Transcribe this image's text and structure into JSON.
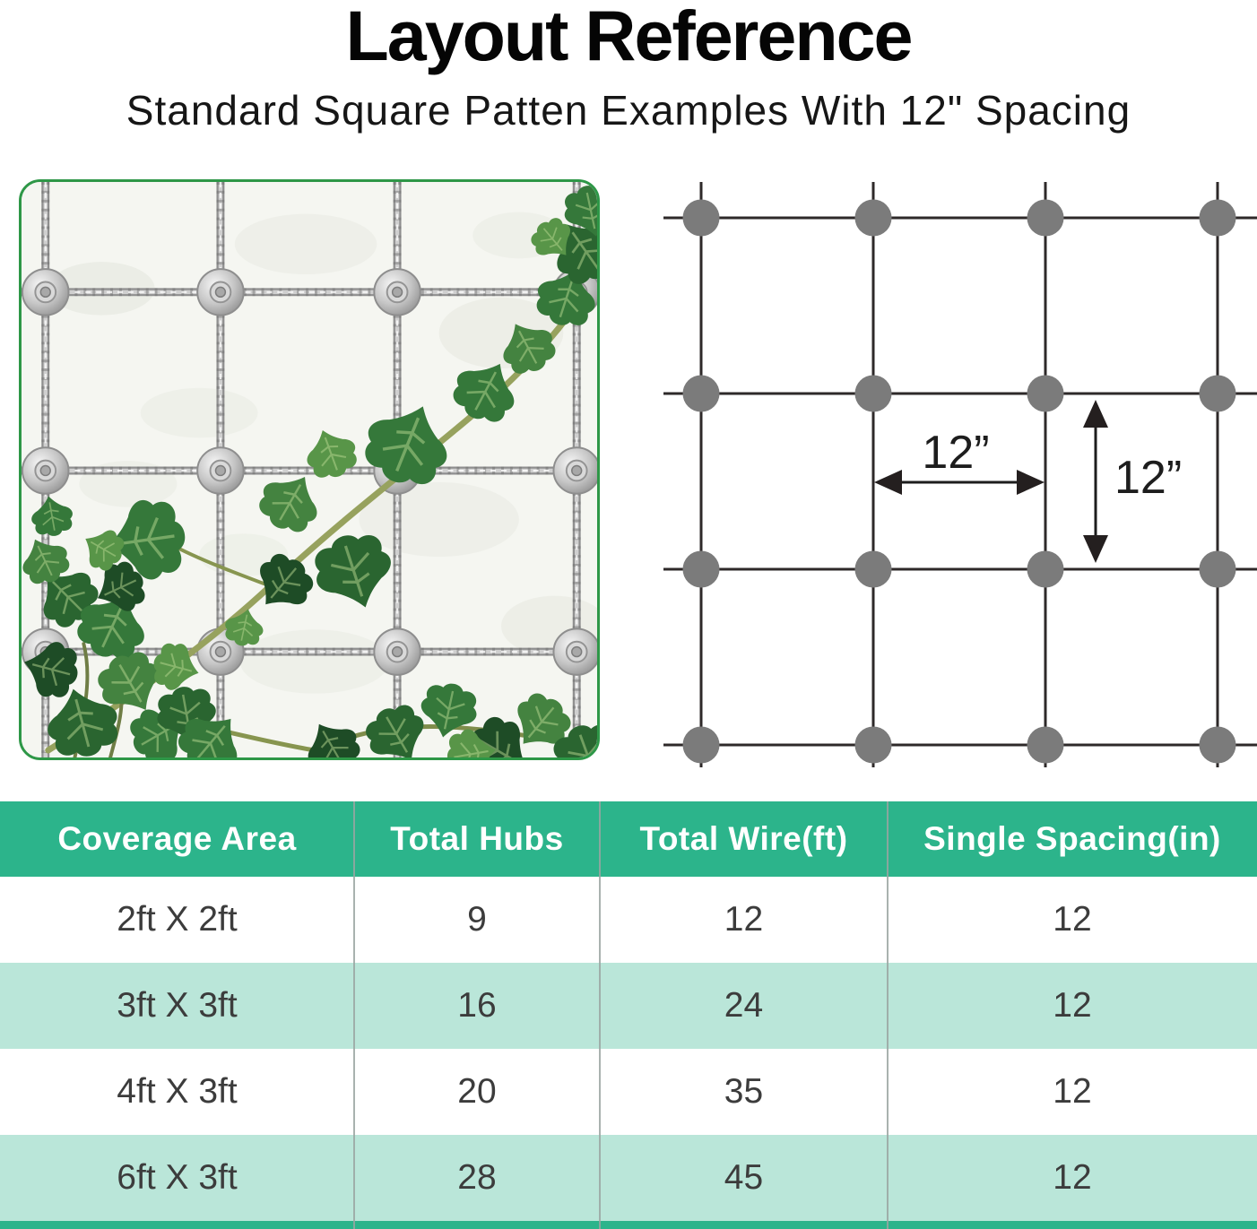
{
  "header": {
    "title": "Layout Reference",
    "subtitle": "Standard Square Patten Examples With 12\" Spacing"
  },
  "photo": {
    "description": "Ivy vine climbing a stainless steel wire-rope trellis grid fixed with round mounting hubs on a white stucco wall"
  },
  "diagram": {
    "type": "square-grid-pattern",
    "grid": {
      "columns": 4,
      "rows": 4,
      "hub_shape": "circle"
    },
    "horizontal_spacing_label": "12”",
    "vertical_spacing_label": "12”",
    "spacing_inches": 12
  },
  "table": {
    "columns": [
      "Coverage Area",
      "Total Hubs",
      "Total Wire(ft)",
      "Single Spacing(in)"
    ],
    "rows": [
      [
        "2ft X 2ft",
        "9",
        "12",
        "12"
      ],
      [
        "3ft X 3ft",
        "16",
        "24",
        "12"
      ],
      [
        "4ft X 3ft",
        "20",
        "35",
        "12"
      ],
      [
        "6ft X 3ft",
        "28",
        "45",
        "12"
      ]
    ]
  },
  "colors": {
    "header_green": "#2cb48b",
    "row_mint": "#bae6d9",
    "photo_border_green": "#2e9747",
    "dot_gray": "#7b7b7b",
    "diagram_line": "#2e2929"
  }
}
